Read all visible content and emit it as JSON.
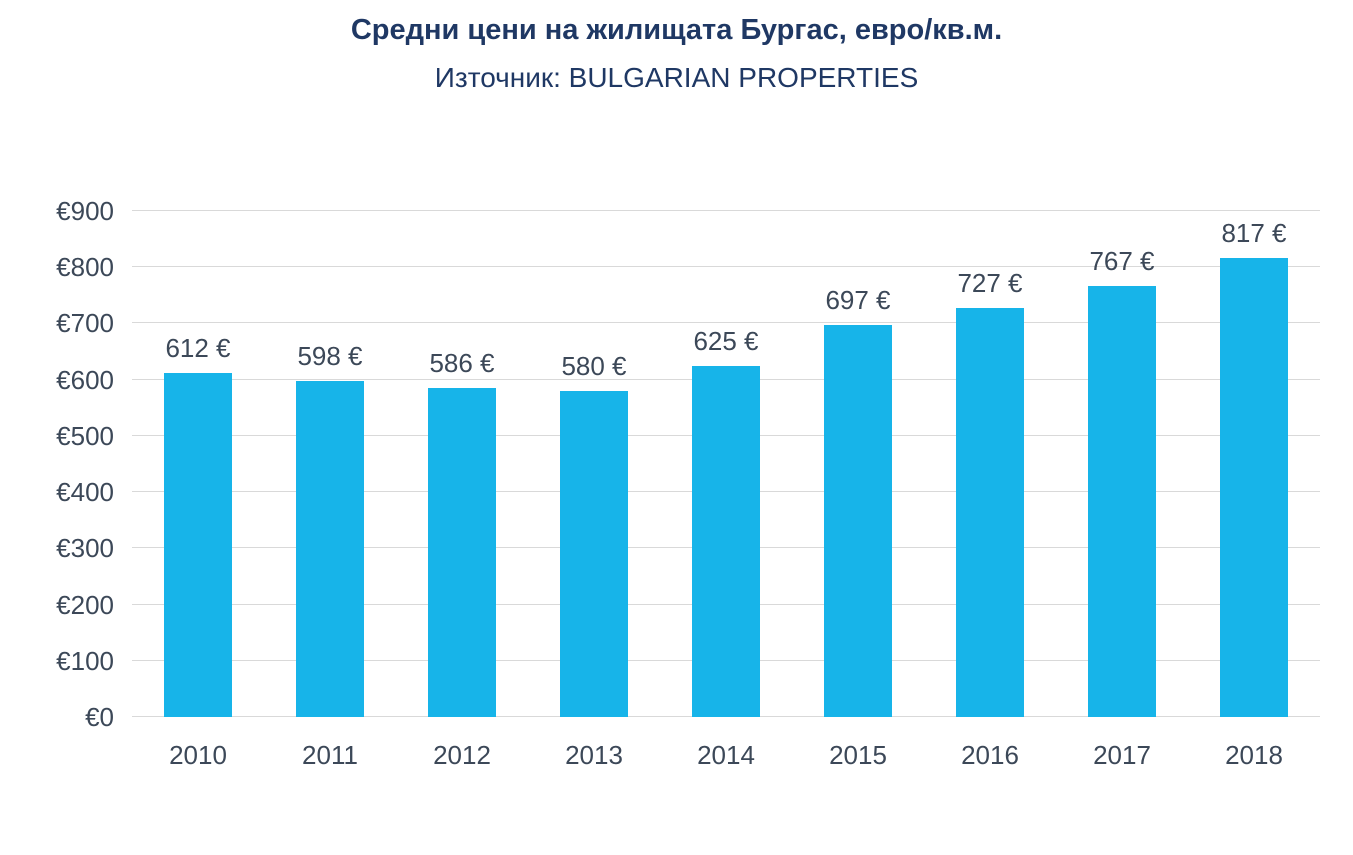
{
  "chart_data": {
    "type": "bar",
    "title": "Средни цени на жилищата Бургас, евро/кв.м.",
    "subtitle": "Източник: BULGARIAN PROPERTIES",
    "categories": [
      "2010",
      "2011",
      "2012",
      "2013",
      "2014",
      "2015",
      "2016",
      "2017",
      "2018"
    ],
    "values": [
      612,
      598,
      586,
      580,
      625,
      697,
      727,
      767,
      817
    ],
    "data_labels": [
      "612 €",
      "598 €",
      "586 €",
      "580 €",
      "625 €",
      "697 €",
      "727 €",
      "767 €",
      "817 €"
    ],
    "xlabel": "",
    "ylabel": "",
    "ylim": [
      0,
      900
    ],
    "y_tick_step": 100,
    "y_tick_labels": [
      "€0",
      "€100",
      "€200",
      "€300",
      "€400",
      "€500",
      "€600",
      "€700",
      "€800",
      "€900"
    ],
    "grid": true,
    "legend": "none",
    "colors": {
      "bar": "#17B4E9",
      "title": "#1F3864",
      "text": "#3C4858",
      "gridline": "#D9D9D9",
      "background": "#FFFFFF"
    }
  }
}
